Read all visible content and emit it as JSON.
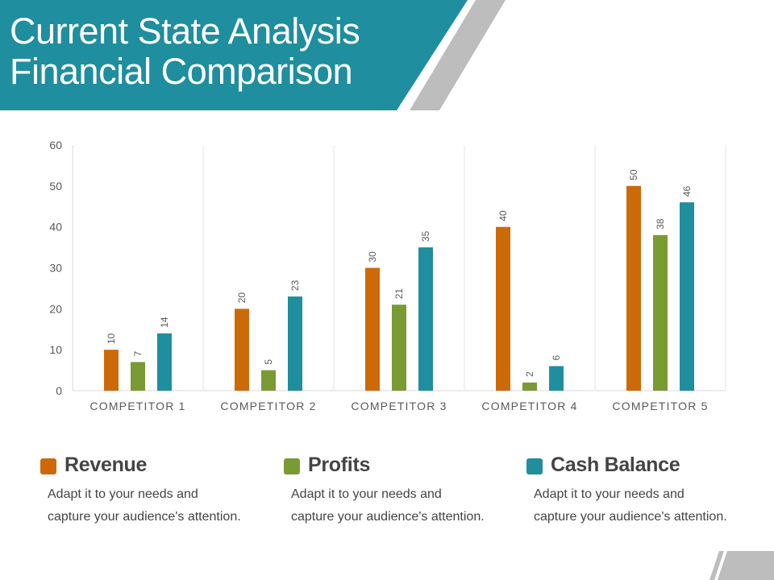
{
  "slide": {
    "title_line1": "Current State Analysis",
    "title_line2": "Financial Comparison"
  },
  "colors": {
    "teal": "#1f8e9e",
    "revenue": "#cc6a0a",
    "profits": "#7a9a34",
    "cash_balance": "#1f8e9e",
    "gray_stripe": "#bdbdbd"
  },
  "chart_data": {
    "type": "bar",
    "categories": [
      "COMPETITOR 1",
      "COMPETITOR 2",
      "COMPETITOR 3",
      "COMPETITOR 4",
      "COMPETITOR 5"
    ],
    "series": [
      {
        "name": "Revenue",
        "values": [
          10,
          20,
          30,
          40,
          50
        ]
      },
      {
        "name": "Profits",
        "values": [
          7,
          5,
          21,
          2,
          38
        ]
      },
      {
        "name": "Cash Balance",
        "values": [
          14,
          23,
          35,
          6,
          46
        ]
      }
    ],
    "ylim": [
      0,
      60
    ],
    "yticks": [
      0,
      10,
      20,
      30,
      40,
      50,
      60
    ],
    "grid": "vertical category separators",
    "data_labels": true,
    "data_label_rotation": "vertical"
  },
  "legend": [
    {
      "name": "Revenue",
      "desc_line1": "Adapt it to your needs and",
      "desc_line2": "capture your audience's attention."
    },
    {
      "name": "Profits",
      "desc_line1": "Adapt it to your needs and",
      "desc_line2": "capture your audience's attention."
    },
    {
      "name": "Cash Balance",
      "desc_line1": "Adapt it to your needs and",
      "desc_line2": "capture your audience's attention."
    }
  ]
}
